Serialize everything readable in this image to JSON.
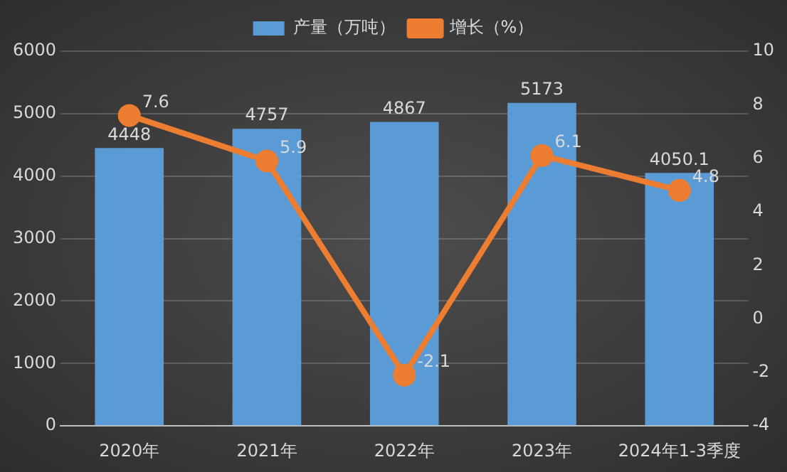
{
  "chart_data": {
    "type": "bar",
    "categories": [
      "2020年",
      "2021年",
      "2022年",
      "2023年",
      "2024年1-3季度"
    ],
    "series": [
      {
        "name": "产量（万吨）",
        "color": "#5b9bd5",
        "values": [
          4448,
          4757,
          4867,
          5173,
          4050.1
        ]
      },
      {
        "name": "增长（%）",
        "type": "line",
        "axis": "y2",
        "color": "#ed7d31",
        "values": [
          7.6,
          5.9,
          -2.1,
          6.1,
          4.8
        ]
      }
    ],
    "ylim": [
      0,
      6000
    ],
    "yticks": [
      0,
      1000,
      2000,
      3000,
      4000,
      5000,
      6000
    ],
    "y2lim": [
      -4,
      10
    ],
    "y2ticks": [
      -4,
      -2,
      0,
      2,
      4,
      6,
      8,
      10
    ],
    "grid": "y",
    "legend": "top",
    "marker": "circle",
    "data_labels": true
  }
}
